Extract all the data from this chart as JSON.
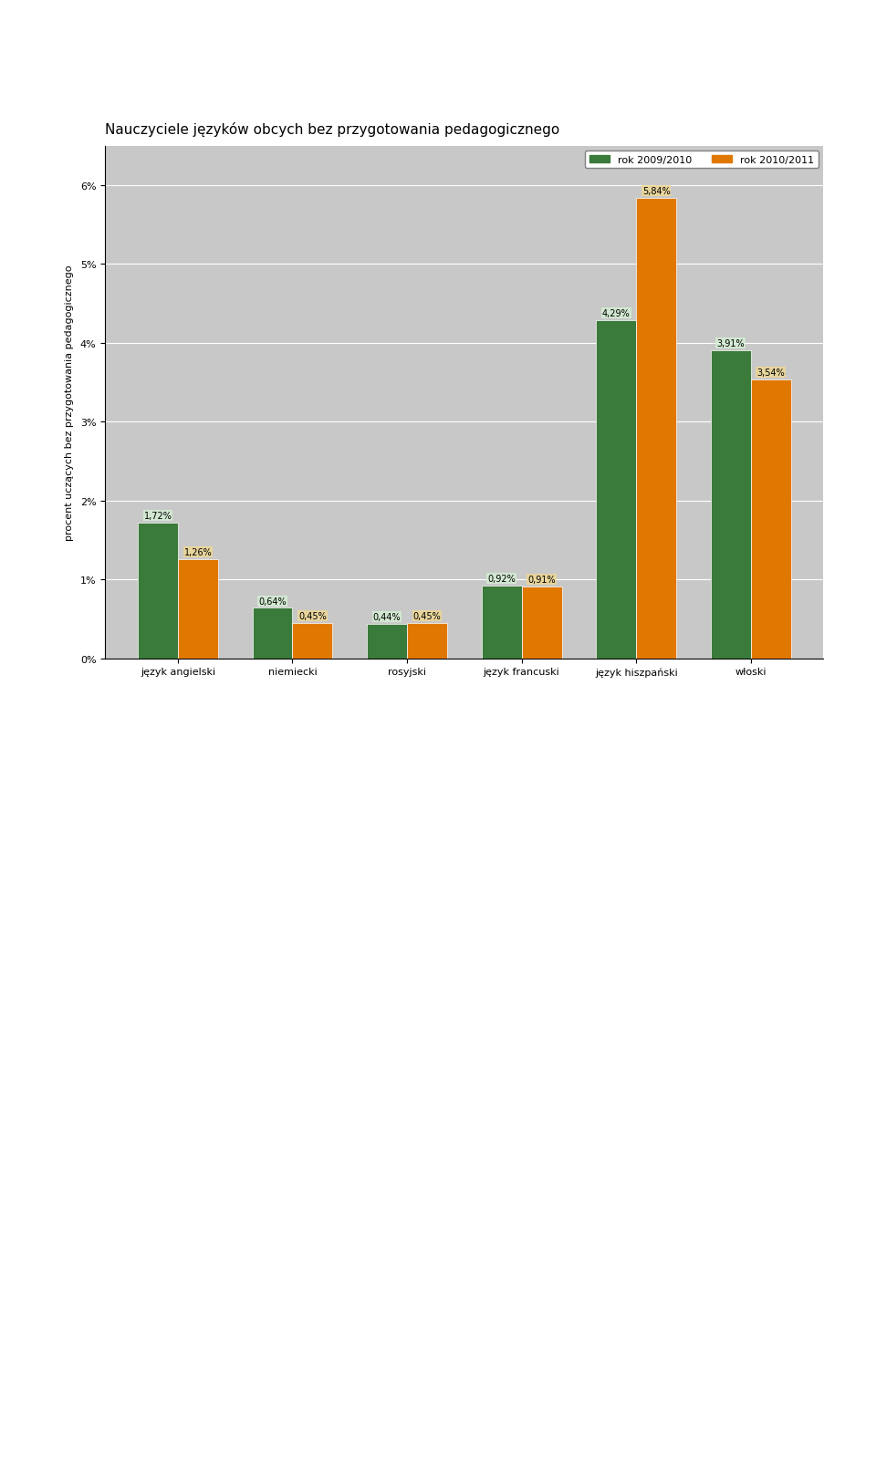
{
  "title": "Nauczyciele języków obcych bez przygotowania pedagogicznego",
  "ylabel": "procent uczących bez przygotowania pedagogicznego",
  "categories": [
    "język angielski",
    "niemiecki",
    "rosyjski",
    "język francuski",
    "język hiszpański",
    "włoski"
  ],
  "series_2009": [
    1.72,
    0.64,
    0.44,
    0.92,
    4.29,
    3.91
  ],
  "series_2010": [
    1.26,
    0.45,
    0.45,
    0.91,
    5.84,
    3.54
  ],
  "color_2009": "#3a7a3a",
  "color_2010": "#e07800",
  "label_2009": "rok 2009/2010",
  "label_2010": "rok 2010/2011",
  "ylim": [
    0,
    6.5
  ],
  "yticks": [
    0,
    1,
    2,
    3,
    4,
    5,
    6
  ],
  "ytick_labels": [
    "0%",
    "1%",
    "2%",
    "3%",
    "4%",
    "5%",
    "6%"
  ],
  "bar_width": 0.35,
  "background_color": "#d4d0c8",
  "plot_bg_color": "#c8c8c8",
  "title_fontsize": 11,
  "label_fontsize": 8,
  "tick_fontsize": 8,
  "value_fontsize": 7
}
